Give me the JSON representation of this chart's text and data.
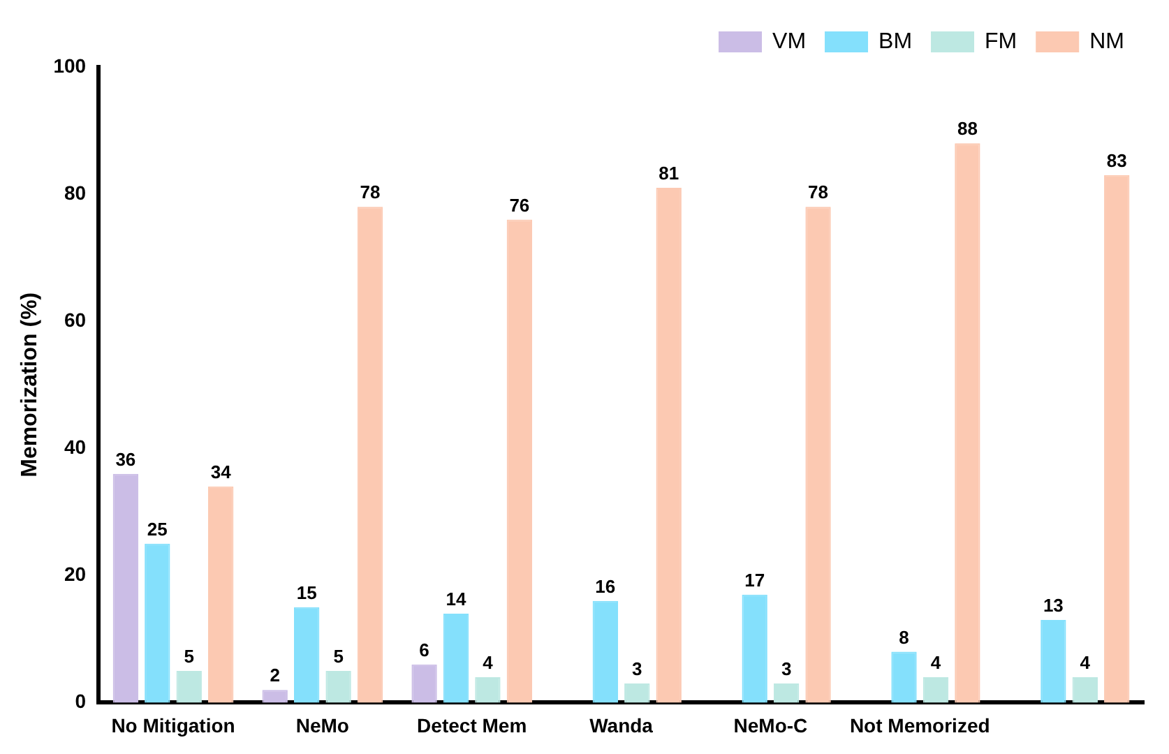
{
  "chart_data": {
    "type": "bar",
    "ylabel": "Memorization (%)",
    "categories": [
      "No Mitigation",
      "NeMo",
      "Detect Mem",
      "Wanda",
      "NeMo-C",
      "Not Memorized",
      null
    ],
    "series": [
      {
        "name": "VM",
        "color": "#cbbde6",
        "values": [
          36,
          2,
          6,
          null,
          null,
          null,
          null
        ]
      },
      {
        "name": "BM",
        "color": "#84e0fc",
        "values": [
          25,
          15,
          14,
          16,
          17,
          8,
          13
        ]
      },
      {
        "name": "FM",
        "color": "#bde8e2",
        "values": [
          5,
          5,
          4,
          3,
          3,
          4,
          4
        ]
      },
      {
        "name": "NM",
        "color": "#fcc9b2",
        "values": [
          34,
          78,
          76,
          81,
          78,
          88,
          83
        ]
      }
    ],
    "ylim": [
      0,
      100
    ],
    "yticks": [
      0,
      20,
      40,
      60,
      80,
      100
    ],
    "grid": false,
    "legend": "top right",
    "data_labels": true
  }
}
